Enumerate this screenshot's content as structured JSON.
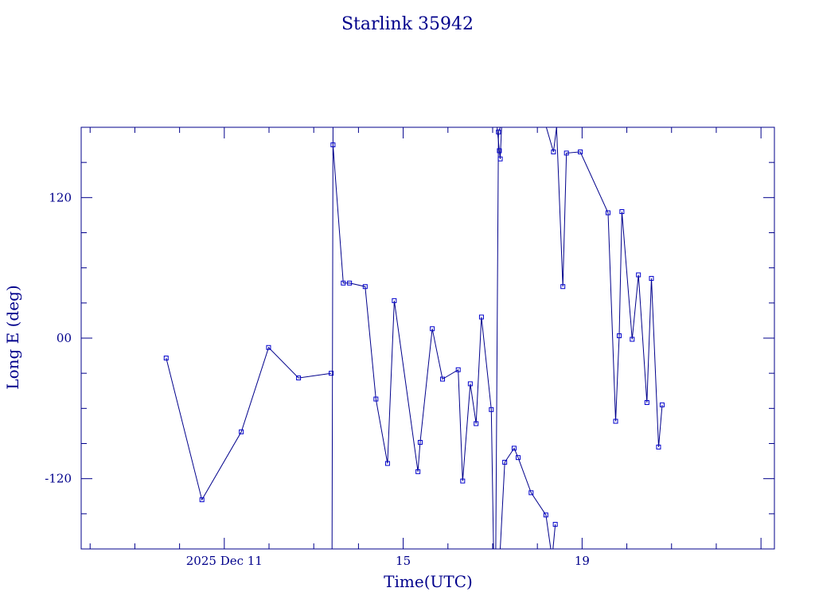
{
  "chart_data": {
    "type": "line",
    "title": "Starlink 35942",
    "xlabel": "Time(UTC)",
    "ylabel": "Long E (deg)",
    "x_tick_labels": [
      "2025 Dec 11",
      "15",
      "19"
    ],
    "x_ticks_day": [
      11,
      15,
      19
    ],
    "xlim_day": [
      7.8,
      23.3
    ],
    "y_tick_labels": [
      "-120",
      "00",
      "120"
    ],
    "y_ticks": [
      -120,
      0,
      120
    ],
    "ylim": [
      -180,
      180
    ],
    "grid": false,
    "marker": "square",
    "colors": {
      "line": "#00008b",
      "marker": "#0000cc",
      "frame": "#00008b"
    },
    "series": [
      {
        "x_day": [
          9.7,
          10.5,
          11.38,
          11.99,
          12.66,
          13.39
        ],
        "values": [
          -17,
          -138,
          -80,
          -8,
          -34,
          -30
        ]
      },
      {
        "x_day": [
          13.41,
          13.43,
          13.43,
          13.66,
          13.8,
          14.15,
          14.39,
          14.65,
          14.8,
          15.33,
          15.38,
          15.65,
          15.88,
          16.23,
          16.33,
          16.5,
          16.63,
          16.75,
          16.97,
          17.02,
          17.07,
          17.13,
          17.17
        ],
        "values": [
          -180,
          180,
          165,
          47,
          47,
          44,
          -52,
          -107,
          32,
          -114,
          -89,
          8,
          -35,
          -27,
          -122,
          -39,
          -73,
          18,
          -61,
          -180,
          -180,
          176,
          180
        ]
      },
      {
        "x_day": [
          17.1,
          17.15,
          17.17,
          17.2
        ],
        "values": [
          180,
          160,
          153,
          180
        ]
      },
      {
        "x_day": [
          17.17,
          17.27,
          17.48,
          17.57,
          17.86,
          18.19,
          18.3
        ],
        "values": [
          -180,
          -106,
          -94,
          -102,
          -132,
          -151,
          -180
        ]
      },
      {
        "x_day": [
          18.35,
          18.4
        ],
        "values": [
          -180,
          -159
        ]
      },
      {
        "x_day": [
          18.2,
          18.36,
          18.43
        ],
        "values": [
          180,
          159,
          180
        ]
      },
      {
        "x_day": [
          18.43,
          18.57,
          18.65,
          18.96,
          19.58,
          19.75,
          19.83,
          19.89,
          20.12,
          20.26,
          20.45,
          20.55,
          20.71,
          20.79
        ],
        "values": [
          180,
          44,
          158,
          159,
          107,
          -71,
          2,
          108,
          -1,
          54,
          -55,
          51,
          -93,
          -57
        ]
      }
    ]
  }
}
